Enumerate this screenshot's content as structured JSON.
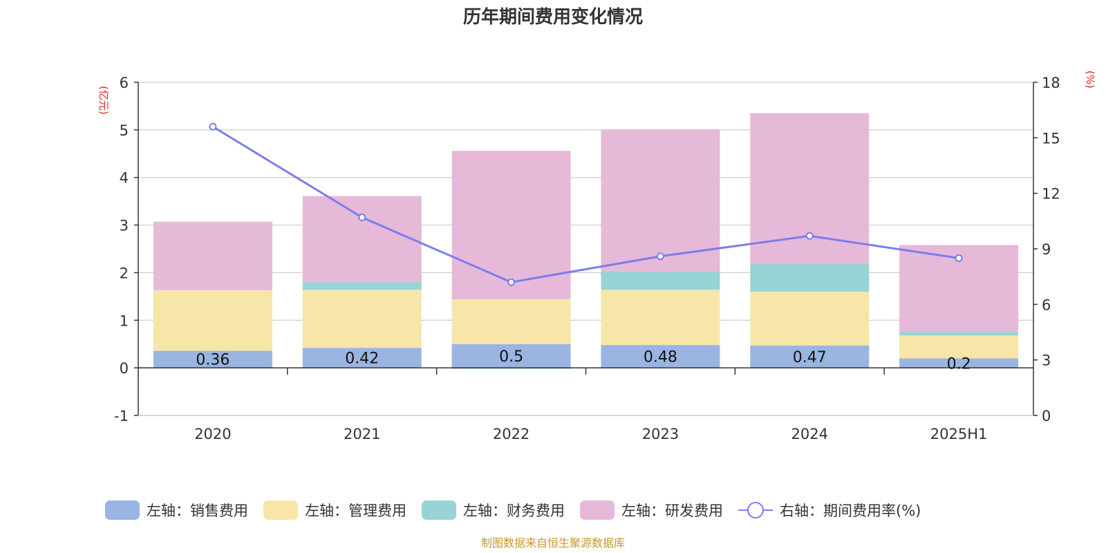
{
  "chart_data": {
    "type": "bar",
    "title": "历年期间费用变化情况",
    "categories": [
      "2020",
      "2021",
      "2022",
      "2023",
      "2024",
      "2025H1"
    ],
    "stacked": true,
    "y_left": {
      "unit": "(亿元)",
      "range": [
        -1,
        6
      ],
      "ticks": [
        "-1",
        "0",
        "1",
        "2",
        "3",
        "4",
        "5",
        "6"
      ]
    },
    "y_right": {
      "unit": "(%)",
      "range": [
        0,
        18
      ],
      "ticks": [
        "0",
        "3",
        "6",
        "9",
        "12",
        "15",
        "18"
      ]
    },
    "grid": true,
    "legend_position": "bottom",
    "series": [
      {
        "name": "左轴：销售费用",
        "axis": "left",
        "color": "#9ab5e1",
        "values": [
          0.36,
          0.42,
          0.5,
          0.48,
          0.47,
          0.2
        ],
        "labels": [
          "0.36",
          "0.42",
          "0.5",
          "0.48",
          "0.47",
          "0.2"
        ]
      },
      {
        "name": "左轴：管理费用",
        "axis": "left",
        "color": "#f7e6a8",
        "values": [
          1.27,
          1.22,
          0.94,
          1.16,
          1.13,
          0.48
        ]
      },
      {
        "name": "左轴：财务费用",
        "axis": "left",
        "color": "#98d4d6",
        "values": [
          -0.01,
          0.16,
          -0.02,
          0.39,
          0.59,
          0.07
        ]
      },
      {
        "name": "左轴：研发费用",
        "axis": "left",
        "color": "#e7b9d9",
        "values": [
          1.44,
          1.81,
          3.12,
          2.98,
          3.16,
          1.83
        ]
      },
      {
        "name": "右轴：期间费用率(%)",
        "axis": "right",
        "type": "line",
        "color": "#7a7df0",
        "values": [
          15.6,
          10.7,
          7.2,
          8.6,
          9.7,
          8.5
        ]
      }
    ],
    "source": "制图数据来自恒生聚源数据库"
  }
}
